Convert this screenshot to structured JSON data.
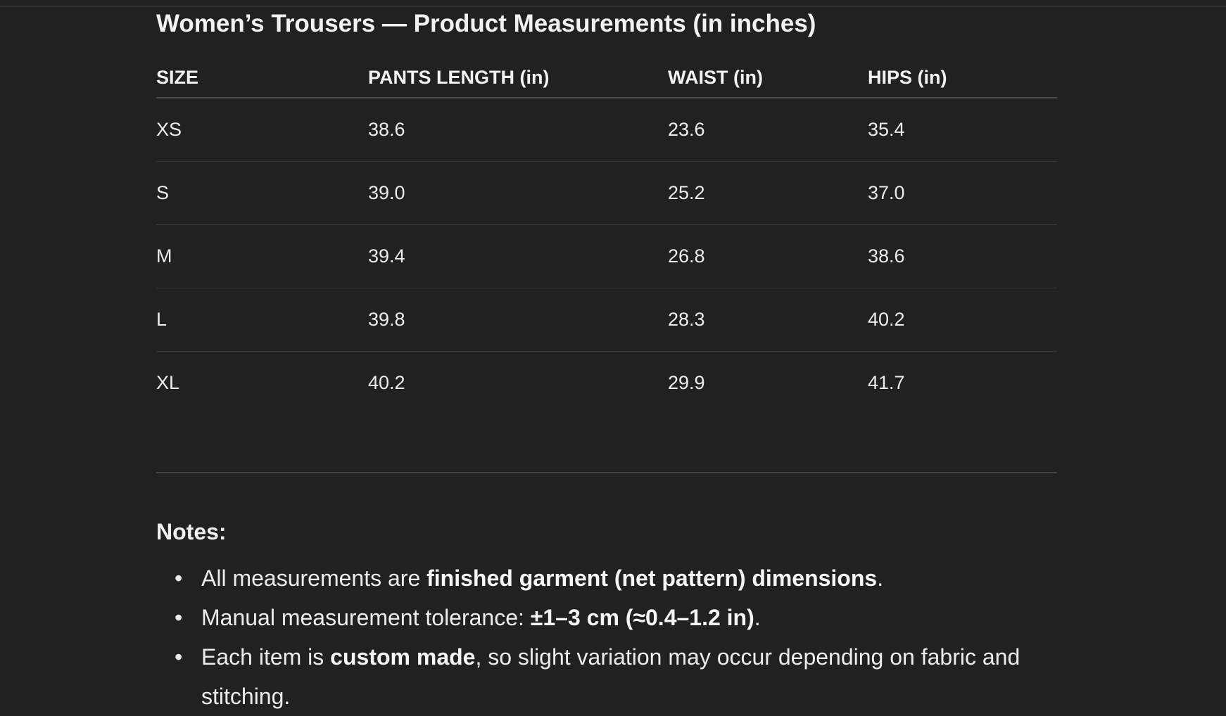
{
  "title": "Women’s Trousers — Product Measurements (in inches)",
  "table": {
    "headers": [
      "SIZE",
      "PANTS LENGTH (in)",
      "WAIST (in)",
      "HIPS (in)"
    ],
    "rows": [
      [
        "XS",
        "38.6",
        "23.6",
        "35.4"
      ],
      [
        "S",
        "39.0",
        "25.2",
        "37.0"
      ],
      [
        "M",
        "39.4",
        "26.8",
        "38.6"
      ],
      [
        "L",
        "39.8",
        "28.3",
        "40.2"
      ],
      [
        "XL",
        "40.2",
        "29.9",
        "41.7"
      ]
    ]
  },
  "notes": {
    "title": "Notes:",
    "items": [
      {
        "pre": "All measurements are ",
        "bold": "finished garment (net pattern) dimensions",
        "post": "."
      },
      {
        "pre": "Manual measurement tolerance: ",
        "bold": "±1–3 cm (≈0.4–1.2 in)",
        "post": "."
      },
      {
        "pre": "Each item is ",
        "bold": "custom made",
        "post": ", so slight variation may occur depending on fabric and stitching."
      }
    ]
  }
}
